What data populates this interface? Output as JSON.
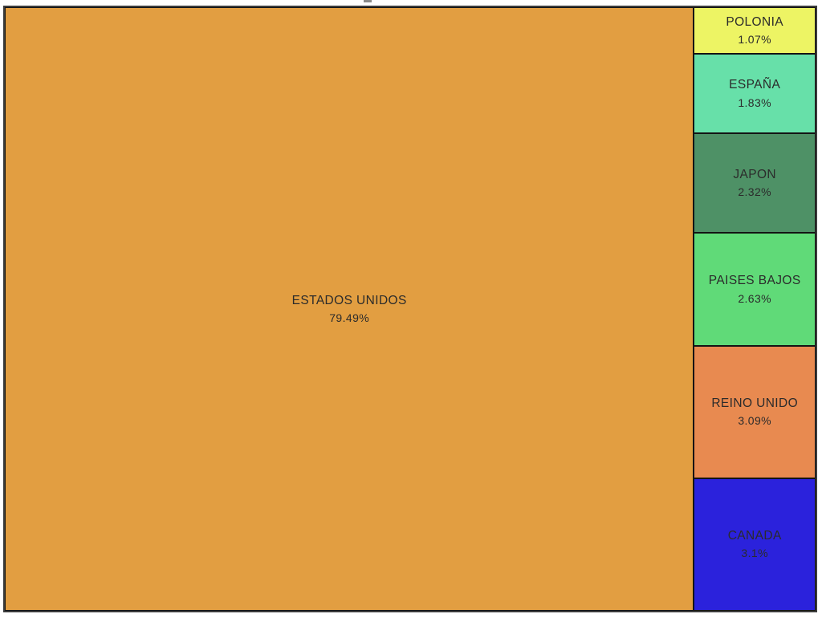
{
  "chart_data": {
    "type": "treemap",
    "title": "",
    "note": "treemap of country percentage shares; largest block left, remainder stacked in right column smallest-to-largest top-to-bottom",
    "legend_position": "none",
    "grid": false,
    "border_color": "#141414",
    "outer_frame_color": "#3c3c3c",
    "text_color": "#2b2b2b",
    "items": [
      {
        "label": "ESTADOS UNIDOS",
        "value": 79.49,
        "pct_label": "79.49%",
        "color": "#e29e41"
      },
      {
        "label": "POLONIA",
        "value": 1.07,
        "pct_label": "1.07%",
        "color": "#edf464"
      },
      {
        "label": "ESPAÑA",
        "value": 1.83,
        "pct_label": "1.83%",
        "color": "#67e0a9"
      },
      {
        "label": "JAPON",
        "value": 2.32,
        "pct_label": "2.32%",
        "color": "#4e9166"
      },
      {
        "label": "PAISES BAJOS",
        "value": 2.63,
        "pct_label": "2.63%",
        "color": "#60da78"
      },
      {
        "label": "REINO UNIDO",
        "value": 3.09,
        "pct_label": "3.09%",
        "color": "#e88a50"
      },
      {
        "label": "CANADA",
        "value": 3.1,
        "pct_label": "3.1%",
        "color": "#2b22dc"
      }
    ]
  }
}
